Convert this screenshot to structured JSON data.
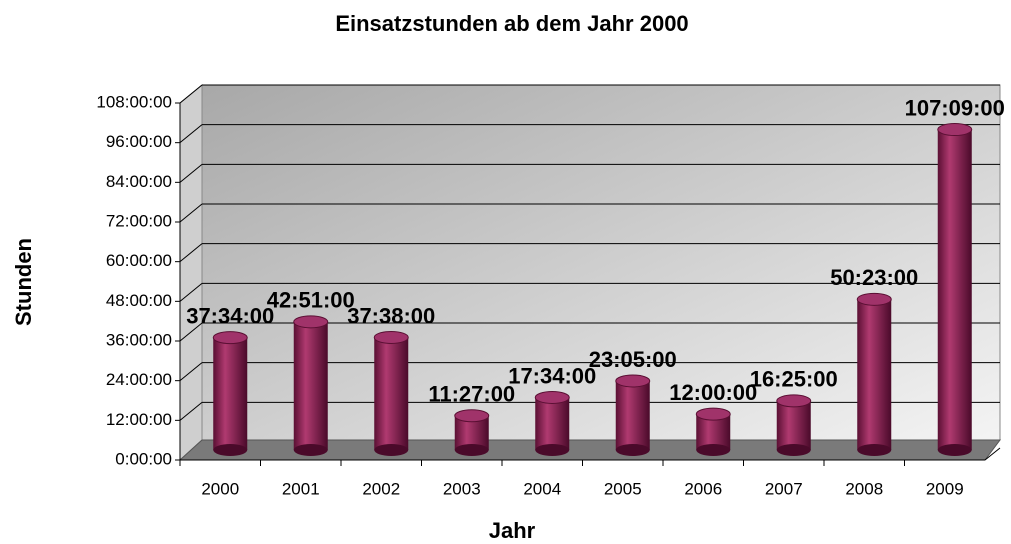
{
  "chart_data": {
    "type": "bar3d",
    "title": "Einsatzstunden ab dem Jahr 2000",
    "x_label": "Jahr",
    "y_label": "Stunden",
    "categories": [
      "2000",
      "2001",
      "2002",
      "2003",
      "2004",
      "2005",
      "2006",
      "2007",
      "2008",
      "2009"
    ],
    "values": [
      37.5667,
      42.85,
      37.6333,
      11.45,
      17.5667,
      23.0833,
      12,
      16.4167,
      50.3833,
      107.15
    ],
    "value_labels": [
      "37:34:00",
      "42:51:00",
      "37:38:00",
      "11:27:00",
      "17:34:00",
      "23:05:00",
      "12:00:00",
      "16:25:00",
      "50:23:00",
      "107:09:00"
    ],
    "color": "#8b1a4e",
    "ylim": [
      0,
      108
    ],
    "yticks": [
      {
        "value": 0,
        "label": "0:00:00"
      },
      {
        "value": 12,
        "label": "12:00:00"
      },
      {
        "value": 24,
        "label": "24:00:00"
      },
      {
        "value": 36,
        "label": "36:00:00"
      },
      {
        "value": 48,
        "label": "48:00:00"
      },
      {
        "value": 60,
        "label": "60:00:00"
      },
      {
        "value": 72,
        "label": "72:00:00"
      },
      {
        "value": 84,
        "label": "84:00:00"
      },
      {
        "value": 96,
        "label": "96:00:00"
      },
      {
        "value": 108,
        "label": "108:00:00"
      }
    ],
    "grid": true
  }
}
